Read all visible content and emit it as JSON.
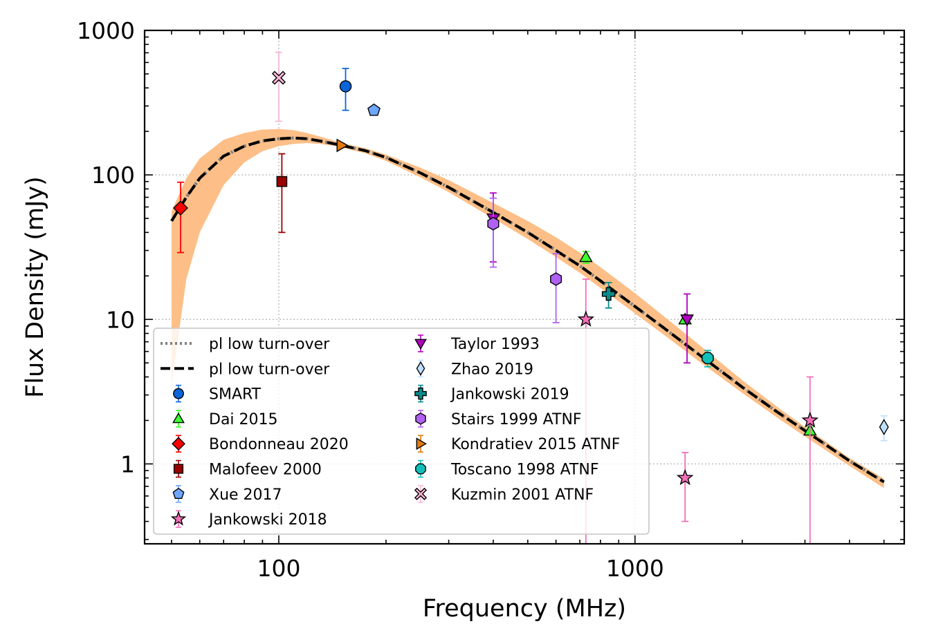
{
  "chart_data": {
    "type": "scatter",
    "title": "",
    "xlabel": "Frequency (MHz)",
    "ylabel": "Flux Density (mJy)",
    "xscale": "log",
    "yscale": "log",
    "xlim": [
      42,
      5700
    ],
    "ylim": [
      0.28,
      1000
    ],
    "grid": true,
    "legend_position": "bottom-left",
    "x_ticks": [
      {
        "value": 100,
        "label": "100"
      },
      {
        "value": 1000,
        "label": "1000"
      }
    ],
    "y_ticks": [
      {
        "value": 1,
        "label": "1"
      },
      {
        "value": 10,
        "label": "10"
      },
      {
        "value": 100,
        "label": "100"
      },
      {
        "value": 1000,
        "label": "1000"
      }
    ],
    "model": {
      "band_color": "#fdbf87",
      "curve_x": [
        50,
        55,
        60,
        70,
        80,
        90,
        100,
        110,
        120,
        130,
        140,
        150,
        175,
        200,
        250,
        300,
        400,
        500,
        600,
        700,
        800,
        1000,
        1200,
        1500,
        2000,
        2500,
        3000,
        4000,
        5000
      ],
      "curve_y": [
        48,
        70,
        95,
        135,
        158,
        172,
        178,
        180,
        178,
        172,
        166,
        160,
        147,
        132,
        103,
        82,
        55,
        40,
        30,
        23.5,
        18.5,
        12.3,
        8.8,
        5.8,
        3.4,
        2.3,
        1.7,
        1.05,
        0.75
      ],
      "band_upper": [
        56,
        95,
        130,
        175,
        195,
        206,
        208,
        204,
        195,
        185,
        175,
        166,
        153,
        138,
        112,
        92,
        64,
        48,
        37,
        29,
        23,
        15.2,
        10.6,
        6.8,
        3.8,
        2.5,
        1.8,
        1.1,
        0.79
      ],
      "band_lower": [
        3.5,
        19,
        40,
        85,
        122,
        146,
        158,
        164,
        166,
        164,
        160,
        155,
        141,
        125,
        96,
        76,
        50,
        36,
        27,
        21,
        16.5,
        11,
        7.9,
        5.2,
        3.1,
        2.1,
        1.55,
        0.97,
        0.68
      ]
    },
    "legend_left": [
      {
        "label": "pl low turn-over",
        "kind": "line",
        "style": "dotted",
        "color": "#7f7f7f"
      },
      {
        "label": "pl low turn-over",
        "kind": "line",
        "style": "dashed",
        "color": "#000000"
      },
      {
        "label": "SMART",
        "kind": "marker",
        "marker": "circle",
        "color": "#0b64d8",
        "ecolor": "#0b64d8"
      },
      {
        "label": "Dai 2015",
        "kind": "marker",
        "marker": "triangle-up",
        "color": "#3dff2e",
        "ecolor": "#3dff2e"
      },
      {
        "label": "Bondonneau 2020",
        "kind": "marker",
        "marker": "diamond",
        "color": "#ff0000",
        "ecolor": "#ff0000"
      },
      {
        "label": "Malofeev 2000",
        "kind": "marker",
        "marker": "square",
        "color": "#9a0000",
        "ecolor": "#9a0000"
      },
      {
        "label": "Xue 2017",
        "kind": "marker",
        "marker": "pentagon",
        "color": "#6ea6ff",
        "ecolor": "#6ea6ff"
      },
      {
        "label": "Jankowski 2018",
        "kind": "marker",
        "marker": "star",
        "color": "#f26fb8",
        "ecolor": "#f26fb8"
      }
    ],
    "legend_right": [
      {
        "label": "Taylor 1993",
        "kind": "marker",
        "marker": "triangle-down",
        "color": "#b000c0",
        "ecolor": "#b000c0"
      },
      {
        "label": "Zhao 2019",
        "kind": "marker",
        "marker": "thin-diamond",
        "color": "#bfe0ff",
        "ecolor": "#bfe0ff"
      },
      {
        "label": "Jankowski 2019",
        "kind": "marker",
        "marker": "plus",
        "color": "#0a8a8a",
        "ecolor": "#0a8a8a"
      },
      {
        "label": "Stairs 1999 ATNF",
        "kind": "marker",
        "marker": "hexagon",
        "color": "#b061f2",
        "ecolor": "#b061f2"
      },
      {
        "label": "Kondratiev 2015 ATNF",
        "kind": "marker",
        "marker": "triangle-right",
        "color": "#e07a0c",
        "ecolor": "#e07a0c"
      },
      {
        "label": "Toscano 1998 ATNF",
        "kind": "marker",
        "marker": "octagon",
        "color": "#10c0b8",
        "ecolor": "#10c0b8"
      },
      {
        "label": "Kuzmin 2001 ATNF",
        "kind": "marker",
        "marker": "x",
        "color": "#ffb6d6",
        "ecolor": "#ffb6d6"
      }
    ],
    "series": [
      {
        "name": "SMART",
        "marker": "circle",
        "color": "#0b64d8",
        "ecolor": "#0b64d8",
        "points": [
          {
            "x": 154,
            "y": 410,
            "ylo": 280,
            "yhi": 545
          }
        ]
      },
      {
        "name": "Dai 2015",
        "marker": "triangle-up",
        "color": "#3dff2e",
        "ecolor": "#3dff2e",
        "points": [
          {
            "x": 728,
            "y": 27,
            "ylo": 24.5,
            "yhi": 29.5
          },
          {
            "x": 1382,
            "y": 10,
            "ylo": 9.3,
            "yhi": 10.7
          },
          {
            "x": 3100,
            "y": 1.7,
            "ylo": 1.6,
            "yhi": 1.8
          }
        ]
      },
      {
        "name": "Bondonneau 2020",
        "marker": "diamond",
        "color": "#ff0000",
        "ecolor": "#ff0000",
        "points": [
          {
            "x": 53,
            "y": 59,
            "ylo": 29,
            "yhi": 89
          }
        ]
      },
      {
        "name": "Malofeev 2000",
        "marker": "square",
        "color": "#9a0000",
        "ecolor": "#9a0000",
        "points": [
          {
            "x": 102,
            "y": 90,
            "ylo": 40,
            "yhi": 140
          }
        ]
      },
      {
        "name": "Xue 2017",
        "marker": "pentagon",
        "color": "#6ea6ff",
        "ecolor": "#6ea6ff",
        "points": [
          {
            "x": 185,
            "y": 280
          }
        ]
      },
      {
        "name": "Jankowski 2018",
        "marker": "star",
        "color": "#f26fb8",
        "ecolor": "#f26fb8",
        "points": [
          {
            "x": 728,
            "y": 10,
            "ylo": 0.2,
            "yhi": 19
          },
          {
            "x": 1382,
            "y": 0.8,
            "ylo": 0.4,
            "yhi": 1.2
          },
          {
            "x": 3100,
            "y": 2,
            "ylo": 0.2,
            "yhi": 4
          }
        ]
      },
      {
        "name": "Taylor 1993",
        "marker": "triangle-down",
        "color": "#b000c0",
        "ecolor": "#b000c0",
        "points": [
          {
            "x": 400,
            "y": 50,
            "ylo": 25,
            "yhi": 75
          },
          {
            "x": 1400,
            "y": 10,
            "ylo": 5,
            "yhi": 15
          }
        ]
      },
      {
        "name": "Zhao 2019",
        "marker": "thin-diamond",
        "color": "#bfe0ff",
        "ecolor": "#bfe0ff",
        "points": [
          {
            "x": 5000,
            "y": 1.8,
            "ylo": 1.45,
            "yhi": 2.15
          }
        ]
      },
      {
        "name": "Jankowski 2019",
        "marker": "plus",
        "color": "#0a8a8a",
        "ecolor": "#0a8a8a",
        "points": [
          {
            "x": 843,
            "y": 15,
            "ylo": 12,
            "yhi": 18
          }
        ]
      },
      {
        "name": "Stairs 1999 ATNF",
        "marker": "hexagon",
        "color": "#b061f2",
        "ecolor": "#b061f2",
        "points": [
          {
            "x": 400,
            "y": 46,
            "ylo": 23,
            "yhi": 69
          },
          {
            "x": 600,
            "y": 19,
            "ylo": 9.5,
            "yhi": 28.5
          }
        ]
      },
      {
        "name": "Kondratiev 2015 ATNF",
        "marker": "triangle-right",
        "color": "#e07a0c",
        "ecolor": "#e07a0c",
        "points": [
          {
            "x": 150,
            "y": 160,
            "ylo": 155,
            "yhi": 165
          }
        ]
      },
      {
        "name": "Toscano 1998 ATNF",
        "marker": "octagon",
        "color": "#10c0b8",
        "ecolor": "#10c0b8",
        "points": [
          {
            "x": 1600,
            "y": 5.4,
            "ylo": 4.7,
            "yhi": 6.1
          }
        ]
      },
      {
        "name": "Kuzmin 2001 ATNF",
        "marker": "x",
        "color": "#ffb6d6",
        "ecolor": "#f4b8d6",
        "points": [
          {
            "x": 100,
            "y": 470,
            "ylo": 235,
            "yhi": 705
          }
        ]
      }
    ]
  }
}
